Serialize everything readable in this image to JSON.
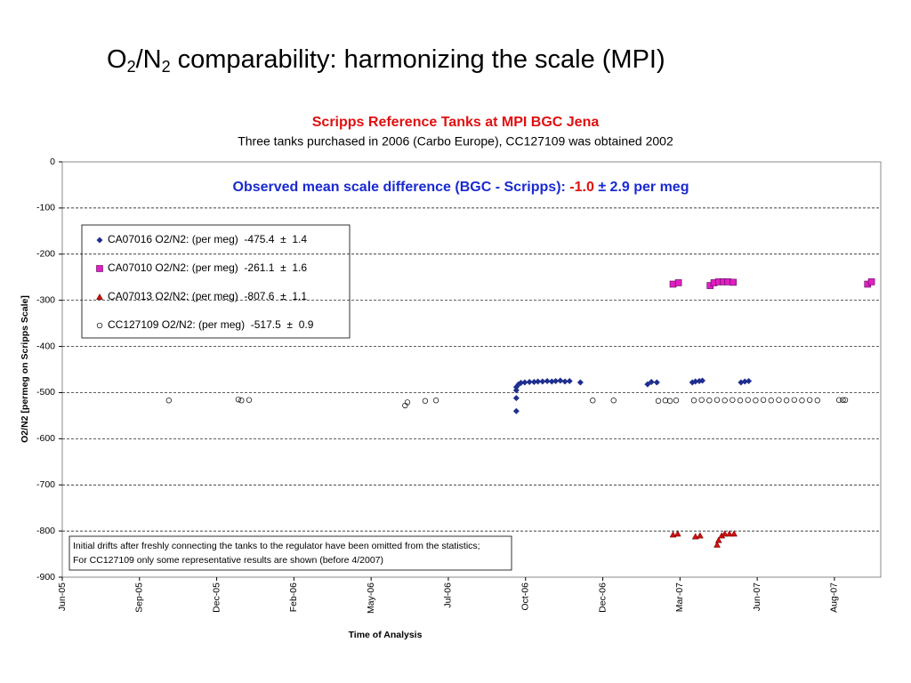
{
  "slide_title": [
    "O",
    "2",
    "/N",
    "2",
    " comparability: harmonizing the scale (MPI)"
  ],
  "chart_data": {
    "type": "scatter",
    "title": "Scripps Reference Tanks at MPI BGC Jena",
    "subtitle": "Three tanks purchased in 2006 (Carbo Europe), CC127109 was obtained 2002",
    "annotation": [
      "Observed mean scale difference (BGC - Scripps): ",
      "-1.0",
      " ± 2.9 per meg"
    ],
    "note": [
      "Initial drifts after freshly connecting the tanks to the regulator have been omitted from the statistics;",
      "For CC127109 only some representative results are shown (before 4/2007)"
    ],
    "x_label": "Time of Analysis",
    "y_label": "O2/N2 [permeg on Scripps Scale]",
    "xlim": [
      0,
      10.6
    ],
    "xticks": [
      {
        "value": 0,
        "label": "Jun-05"
      },
      {
        "value": 1,
        "label": "Sep-05"
      },
      {
        "value": 2,
        "label": "Dec-05"
      },
      {
        "value": 3,
        "label": "Feb-06"
      },
      {
        "value": 4,
        "label": "May-06"
      },
      {
        "value": 5,
        "label": "Jul-06"
      },
      {
        "value": 6,
        "label": "Oct-06"
      },
      {
        "value": 7,
        "label": "Dec-06"
      },
      {
        "value": 8,
        "label": "Mar-07"
      },
      {
        "value": 9,
        "label": "Jun-07"
      },
      {
        "value": 10,
        "label": "Aug-07"
      }
    ],
    "ylim": [
      -900,
      0
    ],
    "yticks": [
      -900,
      -800,
      -700,
      -600,
      -500,
      -400,
      -300,
      -200,
      -100,
      0
    ],
    "grid": true,
    "legend": "upper left",
    "series": [
      {
        "name": "CA07016 O2/N2: (per meg)  -475.4  ±  1.4",
        "color": "#1f2f8f",
        "marker": "diamond",
        "x": [
          5.88,
          5.88,
          5.88,
          5.88,
          5.91,
          5.94,
          5.99,
          6.05,
          6.11,
          6.16,
          6.22,
          6.28,
          6.34,
          6.39,
          6.45,
          6.51,
          6.57,
          6.71,
          7.58,
          7.63,
          7.7,
          8.16,
          8.2,
          8.25,
          8.29,
          8.79,
          8.84,
          8.89
        ],
        "values": [
          -540,
          -512,
          -495,
          -488,
          -482,
          -479,
          -478,
          -477,
          -477,
          -476,
          -476,
          -475,
          -476,
          -475,
          -474,
          -476,
          -475,
          -478,
          -482,
          -477,
          -478,
          -478,
          -476,
          -475,
          -474,
          -478,
          -476,
          -475
        ]
      },
      {
        "name": "CA07010 O2/N2: (per meg)  -261.1  ±  1.6",
        "color": "#e020c0",
        "marker": "square",
        "x": [
          7.91,
          7.98,
          8.39,
          8.44,
          8.5,
          8.56,
          8.62,
          8.69,
          10.43,
          10.48
        ],
        "values": [
          -265,
          -262,
          -268,
          -262,
          -260,
          -260,
          -260,
          -261,
          -265,
          -260
        ]
      },
      {
        "name": "CA07013 O2/N2: (per meg)  -807.6  ±  1.1",
        "color": "#d01010",
        "marker": "triangle",
        "x": [
          7.91,
          7.97,
          8.2,
          8.26,
          8.48,
          8.5,
          8.54,
          8.58,
          8.64,
          8.7
        ],
        "values": [
          -808,
          -806,
          -812,
          -810,
          -830,
          -820,
          -810,
          -806,
          -806,
          -806
        ]
      },
      {
        "name": "CC127109 O2/N2: (per meg)  -517.5  ±  0.9",
        "color": "#000000",
        "marker": "circle",
        "x": [
          1.38,
          2.28,
          2.32,
          2.42,
          4.44,
          4.47,
          4.7,
          4.84,
          6.87,
          7.14,
          7.72,
          7.81,
          7.87,
          7.95,
          8.18,
          8.28,
          8.38,
          8.48,
          8.58,
          8.68,
          8.78,
          8.88,
          8.98,
          9.08,
          9.18,
          9.28,
          9.38,
          9.48,
          9.58,
          9.68,
          9.78,
          10.06,
          10.11,
          10.14
        ],
        "values": [
          -517,
          -515,
          -517,
          -516,
          -528,
          -521,
          -518,
          -517,
          -517,
          -517,
          -518,
          -517,
          -518,
          -517,
          -517,
          -516,
          -517,
          -516,
          -517,
          -516,
          -517,
          -516,
          -517,
          -516,
          -517,
          -516,
          -517,
          -516,
          -517,
          -516,
          -517,
          -516,
          -516,
          -516
        ]
      }
    ]
  }
}
